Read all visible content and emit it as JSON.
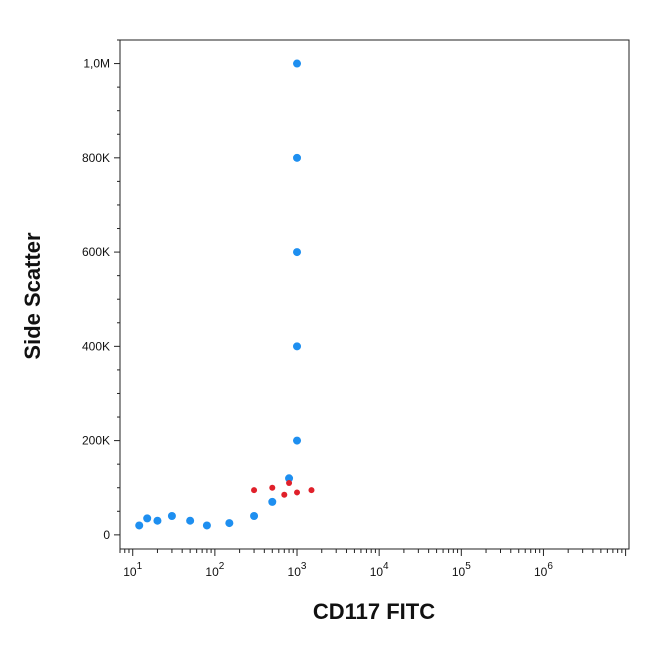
{
  "chart_data": {
    "type": "scatter",
    "title": "",
    "xlabel": "CD117 FITC",
    "ylabel": "Side Scatter",
    "x_scale": "log",
    "xlim": [
      7,
      11000000
    ],
    "ylim": [
      -30000,
      1050000
    ],
    "grid": false,
    "legend": "none",
    "x_ticks": [
      {
        "value": 10,
        "base": "10",
        "exp": "1"
      },
      {
        "value": 100,
        "base": "10",
        "exp": "2"
      },
      {
        "value": 1000,
        "base": "10",
        "exp": "3"
      },
      {
        "value": 10000,
        "base": "10",
        "exp": "4"
      },
      {
        "value": 100000,
        "base": "10",
        "exp": "5"
      },
      {
        "value": 1000000,
        "base": "10",
        "exp": "6"
      }
    ],
    "y_ticks": [
      {
        "value": 0,
        "label": "0"
      },
      {
        "value": 200000,
        "label": "200K"
      },
      {
        "value": 400000,
        "label": "400K"
      },
      {
        "value": 600000,
        "label": "600K"
      },
      {
        "value": 800000,
        "label": "800K"
      },
      {
        "value": 1000000,
        "label": "1,0M"
      }
    ],
    "series": [
      {
        "color": "#1e8ff0",
        "population": "main",
        "points": [
          [
            12,
            20000
          ],
          [
            15,
            35000
          ],
          [
            20,
            30000
          ],
          [
            30,
            40000
          ],
          [
            50,
            30000
          ],
          [
            80,
            20000
          ],
          [
            150,
            25000
          ],
          [
            300,
            40000
          ],
          [
            500,
            70000
          ],
          [
            800,
            120000
          ],
          [
            1000,
            200000
          ],
          [
            1000,
            400000
          ],
          [
            1000,
            600000
          ],
          [
            1000,
            800000
          ],
          [
            1000,
            1000000
          ]
        ]
      },
      {
        "color": "#e0202a",
        "population": "subset",
        "points": [
          [
            300,
            95000
          ],
          [
            500,
            100000
          ],
          [
            700,
            85000
          ],
          [
            800,
            110000
          ],
          [
            1000,
            90000
          ],
          [
            1500,
            95000
          ]
        ]
      }
    ]
  }
}
